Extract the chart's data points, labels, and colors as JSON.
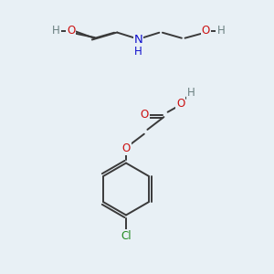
{
  "background_color": "#e8f0f5",
  "atom_colors": {
    "C": "#3a3a3a",
    "H": "#6a8080",
    "O": "#cc1111",
    "N": "#1111cc",
    "Cl": "#228b22"
  },
  "bond_color": "#3a3a3a",
  "bond_width": 1.4
}
